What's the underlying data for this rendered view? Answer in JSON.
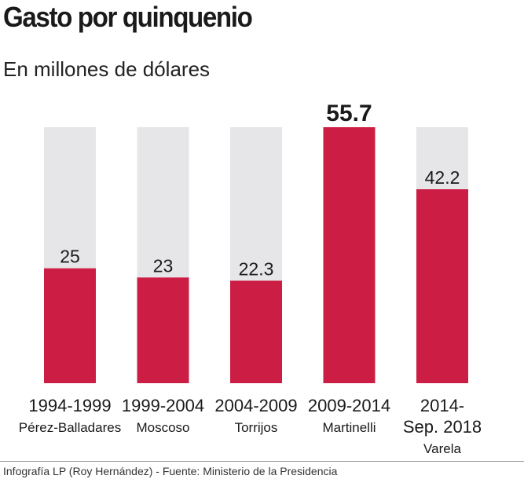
{
  "title": "Gasto por quinquenio",
  "subtitle": "En millones de dólares",
  "source": "Infografía LP (Roy Hernández) - Fuente: Ministerio de la Presidencia",
  "colors": {
    "bar": "#cc1e44",
    "track": "#e6e6e8",
    "text": "#1a1a1a"
  },
  "chart_data": {
    "type": "bar",
    "title": "Gasto por quinquenio",
    "subtitle": "En millones de dólares",
    "ylim": [
      0,
      55.7
    ],
    "grid": false,
    "categories": [
      {
        "period": [
          "1994-1999"
        ],
        "name": "Pérez-Balladares"
      },
      {
        "period": [
          "1999-2004"
        ],
        "name": "Moscoso"
      },
      {
        "period": [
          "2004-2009"
        ],
        "name": "Torrijos"
      },
      {
        "period": [
          "2009-2014"
        ],
        "name": "Martinelli"
      },
      {
        "period": [
          "2014-",
          "Sep. 2018"
        ],
        "name": "Varela"
      }
    ],
    "values": [
      25,
      23,
      22.3,
      55.7,
      42.2
    ],
    "value_labels": [
      "25",
      "23",
      "22.3",
      "55.7",
      "42.2"
    ],
    "highlight_index": 3
  }
}
